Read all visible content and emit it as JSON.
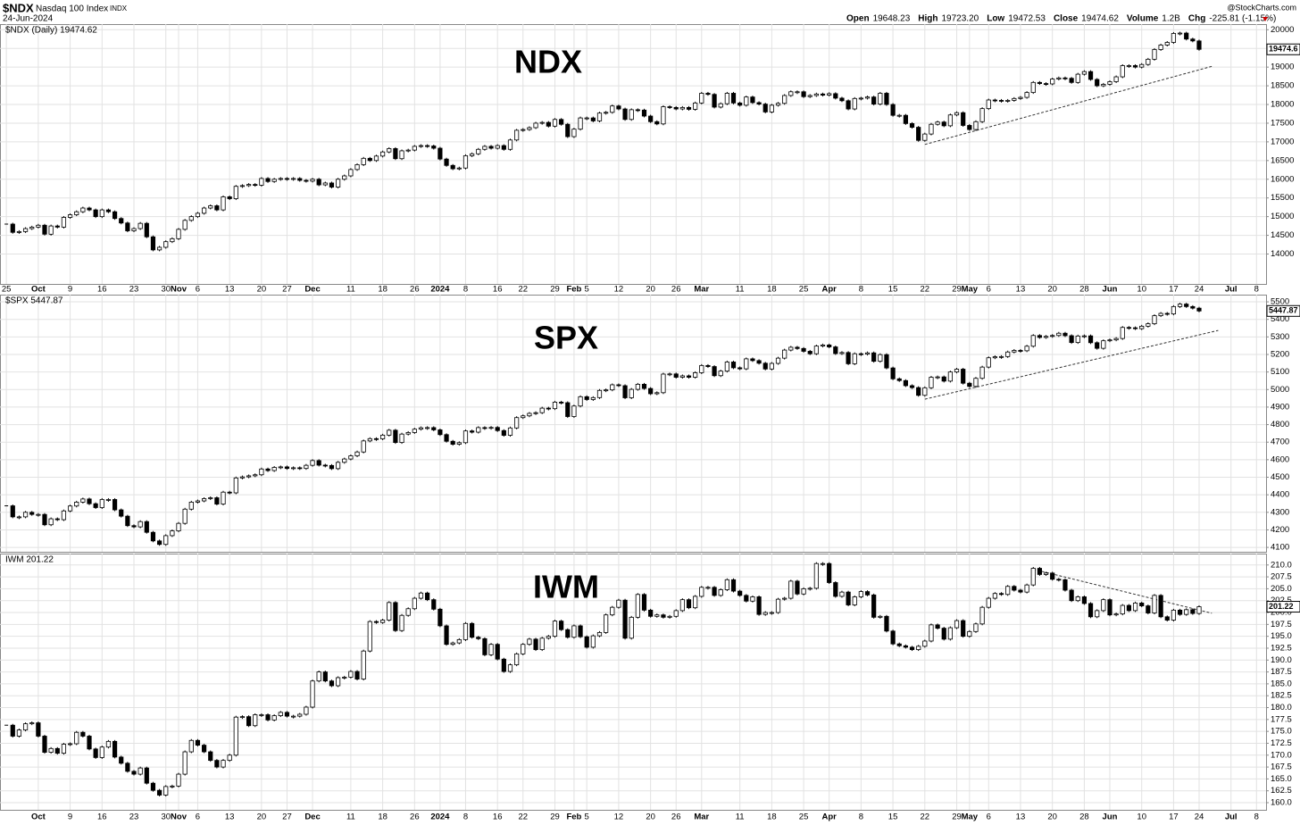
{
  "header": {
    "symbol": "$NDX",
    "name": "Nasdaq 100 Index",
    "exchange": "INDX",
    "date": "24-Jun-2024",
    "source": "@StockCharts.com",
    "quote": [
      {
        "label": "Open",
        "value": "19648.23"
      },
      {
        "label": "High",
        "value": "19723.20"
      },
      {
        "label": "Low",
        "value": "19472.53"
      },
      {
        "label": "Close",
        "value": "19474.62"
      },
      {
        "label": "Volume",
        "value": "1.2B"
      },
      {
        "label": "Chg",
        "value": "-225.81 (-1.15%)"
      }
    ]
  },
  "chart_data": [
    {
      "type": "candlestick",
      "title": "NDX",
      "label": "$NDX (Daily) 19474.62",
      "last_label": "19474.6",
      "grid": true,
      "xlim": [
        -1,
        197.5
      ],
      "ylim": [
        13200,
        20150
      ],
      "yticks": [
        14000,
        14500,
        15000,
        15500,
        16000,
        16500,
        17000,
        17500,
        18000,
        18500,
        19000,
        19500,
        20000
      ],
      "xticks": [
        {
          "value": 0,
          "label": "25"
        },
        {
          "value": 5,
          "label": "Oct"
        },
        {
          "value": 10,
          "label": "9"
        },
        {
          "value": 15,
          "label": "16"
        },
        {
          "value": 20,
          "label": "23"
        },
        {
          "value": 25,
          "label": "30"
        },
        {
          "value": 27,
          "label": "Nov"
        },
        {
          "value": 30,
          "label": "6"
        },
        {
          "value": 35,
          "label": "13"
        },
        {
          "value": 40,
          "label": "20"
        },
        {
          "value": 44,
          "label": "27"
        },
        {
          "value": 48,
          "label": "Dec"
        },
        {
          "value": 54,
          "label": "11"
        },
        {
          "value": 59,
          "label": "18"
        },
        {
          "value": 64,
          "label": "26"
        },
        {
          "value": 68,
          "label": "2024"
        },
        {
          "value": 72,
          "label": "8"
        },
        {
          "value": 77,
          "label": "16"
        },
        {
          "value": 81,
          "label": "22"
        },
        {
          "value": 86,
          "label": "29"
        },
        {
          "value": 89,
          "label": "Feb"
        },
        {
          "value": 91,
          "label": "5"
        },
        {
          "value": 96,
          "label": "12"
        },
        {
          "value": 101,
          "label": "20"
        },
        {
          "value": 105,
          "label": "26"
        },
        {
          "value": 109,
          "label": "Mar"
        },
        {
          "value": 115,
          "label": "11"
        },
        {
          "value": 120,
          "label": "18"
        },
        {
          "value": 125,
          "label": "25"
        },
        {
          "value": 129,
          "label": "Apr"
        },
        {
          "value": 134,
          "label": "8"
        },
        {
          "value": 139,
          "label": "15"
        },
        {
          "value": 144,
          "label": "22"
        },
        {
          "value": 149,
          "label": "29"
        },
        {
          "value": 151,
          "label": "May"
        },
        {
          "value": 154,
          "label": "6"
        },
        {
          "value": 159,
          "label": "13"
        },
        {
          "value": 164,
          "label": "20"
        },
        {
          "value": 169,
          "label": "28"
        },
        {
          "value": 173,
          "label": "Jun"
        },
        {
          "value": 178,
          "label": "10"
        },
        {
          "value": 183,
          "label": "17"
        },
        {
          "value": 187,
          "label": "24"
        },
        {
          "value": 192,
          "label": "Jul"
        },
        {
          "value": 196,
          "label": "8"
        }
      ],
      "trendline": {
        "x": [
          144,
          189
        ],
        "y": [
          16930,
          19020
        ]
      },
      "values": [
        14800,
        14580,
        14600,
        14680,
        14720,
        14770,
        14530,
        14750,
        14720,
        14980,
        15050,
        15130,
        15230,
        15180,
        15000,
        15180,
        15130,
        14950,
        14830,
        14620,
        14680,
        14820,
        14460,
        14110,
        14180,
        14330,
        14410,
        14660,
        14900,
        15000,
        15090,
        15230,
        15290,
        15180,
        15530,
        15480,
        15810,
        15830,
        15860,
        15840,
        16020,
        15940,
        16000,
        16020,
        16000,
        16020,
        15970,
        15950,
        16000,
        15850,
        15900,
        15790,
        16000,
        16090,
        16260,
        16390,
        16560,
        16500,
        16620,
        16730,
        16820,
        16550,
        16760,
        16780,
        16880,
        16900,
        16890,
        16830,
        16540,
        16370,
        16280,
        16300,
        16630,
        16680,
        16800,
        16880,
        16830,
        16900,
        16800,
        17050,
        17310,
        17330,
        17380,
        17500,
        17520,
        17420,
        17600,
        17470,
        17140,
        17340,
        17640,
        17640,
        17560,
        17770,
        17790,
        17960,
        17880,
        17600,
        17860,
        17850,
        17690,
        17540,
        17480,
        17940,
        17920,
        17880,
        17920,
        17870,
        18040,
        18300,
        18270,
        17930,
        18020,
        18300,
        18040,
        17980,
        18200,
        18050,
        18010,
        17800,
        17980,
        18030,
        18240,
        18340,
        18340,
        18210,
        18240,
        18280,
        18250,
        18290,
        18170,
        18100,
        17880,
        18160,
        18170,
        18200,
        18010,
        18300,
        18000,
        17710,
        17710,
        17490,
        17390,
        17040,
        17210,
        17470,
        17530,
        17430,
        17720,
        17780,
        17440,
        17330,
        17540,
        17890,
        18120,
        18110,
        18100,
        18110,
        18160,
        18190,
        18320,
        18590,
        18560,
        18550,
        18680,
        18710,
        18700,
        18590,
        18810,
        18880,
        18670,
        18500,
        18540,
        18610,
        18740,
        19040,
        19040,
        19000,
        19070,
        19210,
        19470,
        19590,
        19660,
        19900,
        19910,
        19750,
        19700,
        19474.62
      ]
    },
    {
      "type": "candlestick",
      "title": "SPX",
      "label": "$SPX 5447.87",
      "last_label": "5447.87",
      "grid": true,
      "xlim": [
        -1,
        197.5
      ],
      "ylim": [
        4075,
        5541
      ],
      "yticks": [
        4100,
        4200,
        4300,
        4400,
        4500,
        4600,
        4700,
        4800,
        4900,
        5000,
        5100,
        5200,
        5300,
        5400,
        5500
      ],
      "xticks": [
        0,
        5,
        10,
        15,
        20,
        25,
        27,
        30,
        35,
        40,
        44,
        48,
        54,
        59,
        64,
        68,
        72,
        77,
        81,
        86,
        89,
        91,
        96,
        101,
        105,
        109,
        115,
        120,
        125,
        129,
        134,
        139,
        144,
        149,
        151,
        154,
        159,
        164,
        169,
        173,
        178,
        183,
        187,
        192,
        196
      ],
      "trendline": {
        "x": [
          144,
          190
        ],
        "y": [
          4945,
          5337
        ]
      },
      "values": [
        4337,
        4274,
        4274,
        4300,
        4288,
        4288,
        4229,
        4263,
        4258,
        4308,
        4336,
        4358,
        4376,
        4349,
        4327,
        4373,
        4373,
        4314,
        4278,
        4224,
        4217,
        4247,
        4186,
        4137,
        4117,
        4167,
        4194,
        4237,
        4318,
        4358,
        4365,
        4378,
        4383,
        4347,
        4415,
        4411,
        4496,
        4502,
        4508,
        4514,
        4547,
        4538,
        4556,
        4559,
        4550,
        4554,
        4550,
        4568,
        4595,
        4569,
        4567,
        4549,
        4585,
        4604,
        4622,
        4644,
        4707,
        4720,
        4719,
        4740,
        4768,
        4698,
        4746,
        4755,
        4774,
        4782,
        4783,
        4770,
        4743,
        4705,
        4688,
        4697,
        4764,
        4757,
        4783,
        4780,
        4784,
        4766,
        4739,
        4781,
        4840,
        4850,
        4864,
        4868,
        4894,
        4891,
        4928,
        4925,
        4846,
        4906,
        4959,
        4943,
        4954,
        4995,
        4998,
        5027,
        5022,
        4953,
        5001,
        5030,
        5006,
        4976,
        4982,
        5088,
        5089,
        5070,
        5078,
        5070,
        5096,
        5137,
        5131,
        5079,
        5105,
        5157,
        5124,
        5118,
        5175,
        5165,
        5150,
        5117,
        5149,
        5179,
        5225,
        5241,
        5234,
        5218,
        5204,
        5248,
        5254,
        5243,
        5205,
        5211,
        5147,
        5204,
        5202,
        5209,
        5161,
        5199,
        5123,
        5061,
        5051,
        5022,
        5011,
        4967,
        5010,
        5070,
        5072,
        5048,
        5100,
        5116,
        5036,
        5018,
        5064,
        5128,
        5181,
        5187,
        5188,
        5214,
        5223,
        5221,
        5247,
        5308,
        5297,
        5303,
        5308,
        5321,
        5307,
        5268,
        5305,
        5306,
        5267,
        5235,
        5278,
        5283,
        5291,
        5354,
        5352,
        5347,
        5361,
        5375,
        5421,
        5434,
        5431,
        5473,
        5487,
        5473,
        5464,
        5447.87
      ]
    },
    {
      "type": "candlestick",
      "title": "IWM",
      "label": "IWM 201.22",
      "last_label": "201.22",
      "grid": true,
      "xlim": [
        -1,
        197.5
      ],
      "ylim": [
        158.5,
        212.4
      ],
      "yticks": [
        {
          "value": 160,
          "label": "160.0"
        },
        {
          "value": 162.5,
          "label": "162.5"
        },
        {
          "value": 165,
          "label": "165.0"
        },
        {
          "value": 167.5,
          "label": "167.5"
        },
        {
          "value": 170,
          "label": "170.0"
        },
        {
          "value": 172.5,
          "label": "172.5"
        },
        {
          "value": 175,
          "label": "175.0"
        },
        {
          "value": 177.5,
          "label": "177.5"
        },
        {
          "value": 180,
          "label": "180.0"
        },
        {
          "value": 182.5,
          "label": "182.5"
        },
        {
          "value": 185,
          "label": "185.0"
        },
        {
          "value": 187.5,
          "label": "187.5"
        },
        {
          "value": 190,
          "label": "190.0"
        },
        {
          "value": 192.5,
          "label": "192.5"
        },
        {
          "value": 195,
          "label": "195.0"
        },
        {
          "value": 197.5,
          "label": "197.5"
        },
        {
          "value": 200,
          "label": "200.0"
        },
        {
          "value": 202.5,
          "label": "202.5"
        },
        {
          "value": 205,
          "label": "205.0"
        },
        {
          "value": 207.5,
          "label": "207.5"
        },
        {
          "value": 210,
          "label": "210.0"
        }
      ],
      "xticks": [
        {
          "value": 5,
          "label": "Oct"
        },
        {
          "value": 10,
          "label": "9"
        },
        {
          "value": 15,
          "label": "16"
        },
        {
          "value": 20,
          "label": "23"
        },
        {
          "value": 25,
          "label": "30"
        },
        {
          "value": 27,
          "label": "Nov"
        },
        {
          "value": 30,
          "label": "6"
        },
        {
          "value": 35,
          "label": "13"
        },
        {
          "value": 40,
          "label": "20"
        },
        {
          "value": 44,
          "label": "27"
        },
        {
          "value": 48,
          "label": "Dec"
        },
        {
          "value": 54,
          "label": "11"
        },
        {
          "value": 59,
          "label": "18"
        },
        {
          "value": 64,
          "label": "26"
        },
        {
          "value": 68,
          "label": "2024"
        },
        {
          "value": 72,
          "label": "8"
        },
        {
          "value": 77,
          "label": "16"
        },
        {
          "value": 81,
          "label": "22"
        },
        {
          "value": 86,
          "label": "29"
        },
        {
          "value": 89,
          "label": "Feb"
        },
        {
          "value": 91,
          "label": "5"
        },
        {
          "value": 96,
          "label": "12"
        },
        {
          "value": 101,
          "label": "20"
        },
        {
          "value": 105,
          "label": "26"
        },
        {
          "value": 109,
          "label": "Mar"
        },
        {
          "value": 115,
          "label": "11"
        },
        {
          "value": 120,
          "label": "18"
        },
        {
          "value": 125,
          "label": "25"
        },
        {
          "value": 129,
          "label": "Apr"
        },
        {
          "value": 134,
          "label": "8"
        },
        {
          "value": 139,
          "label": "15"
        },
        {
          "value": 144,
          "label": "22"
        },
        {
          "value": 149,
          "label": "29"
        },
        {
          "value": 151,
          "label": "May"
        },
        {
          "value": 154,
          "label": "6"
        },
        {
          "value": 159,
          "label": "13"
        },
        {
          "value": 164,
          "label": "20"
        },
        {
          "value": 169,
          "label": "28"
        },
        {
          "value": 173,
          "label": "Jun"
        },
        {
          "value": 178,
          "label": "10"
        },
        {
          "value": 183,
          "label": "17"
        },
        {
          "value": 187,
          "label": "24"
        },
        {
          "value": 192,
          "label": "Jul"
        },
        {
          "value": 196,
          "label": "8"
        }
      ],
      "trendline": {
        "x": [
          161,
          189
        ],
        "y": [
          209.1,
          199.85
        ]
      },
      "values": [
        176.3,
        174.0,
        175.3,
        176.6,
        176.8,
        174.0,
        170.6,
        171.4,
        170.4,
        172.3,
        172.4,
        174.8,
        174.0,
        171.3,
        169.5,
        171.7,
        172.9,
        169.6,
        168.3,
        166.6,
        166.0,
        167.3,
        164.1,
        162.6,
        161.6,
        163.4,
        163.5,
        166.0,
        170.7,
        173.1,
        172.1,
        170.7,
        168.9,
        167.5,
        168.9,
        170.0,
        178.0,
        178.1,
        176.2,
        178.5,
        178.5,
        177.4,
        178.3,
        179.0,
        178.2,
        178.2,
        178.6,
        180.1,
        185.6,
        187.5,
        185.6,
        184.6,
        186.3,
        186.4,
        187.6,
        186.0,
        191.9,
        198.1,
        197.9,
        198.4,
        202.1,
        196.2,
        199.4,
        200.8,
        203.0,
        204.1,
        202.7,
        200.7,
        197.2,
        193.3,
        193.6,
        194.3,
        197.7,
        194.8,
        194.5,
        191.1,
        193.3,
        190.2,
        187.6,
        189.0,
        191.3,
        193.3,
        194.4,
        192.2,
        194.6,
        195.0,
        198.2,
        196.4,
        194.8,
        197.2,
        194.9,
        192.7,
        195.1,
        195.8,
        199.5,
        201.1,
        202.6,
        194.6,
        199.0,
        203.8,
        200.5,
        199.2,
        199.5,
        199.0,
        199.2,
        200.4,
        202.7,
        201.0,
        203.4,
        205.3,
        205.3,
        203.6,
        204.8,
        206.9,
        204.5,
        203.6,
        202.4,
        203.3,
        199.6,
        200.0,
        200.0,
        202.8,
        203.0,
        206.6,
        203.9,
        205.0,
        205.1,
        210.3,
        210.3,
        206.3,
        203.4,
        204.3,
        201.6,
        203.3,
        204.4,
        203.7,
        199.0,
        199.2,
        196.1,
        193.4,
        193.0,
        192.7,
        192.2,
        192.9,
        194.0,
        197.4,
        196.7,
        194.4,
        196.8,
        198.3,
        195.0,
        196.0,
        197.6,
        201.1,
        203.0,
        204.0,
        203.8,
        205.5,
        204.7,
        204.3,
        205.8,
        209.3,
        208.0,
        208.3,
        207.0,
        206.9,
        204.7,
        202.5,
        203.3,
        201.9,
        199.1,
        200.4,
        202.7,
        199.5,
        199.7,
        201.5,
        200.4,
        202.0,
        201.4,
        199.9,
        203.6,
        199.1,
        198.4,
        200.5,
        199.6,
        200.6,
        199.8,
        201.22
      ]
    }
  ]
}
